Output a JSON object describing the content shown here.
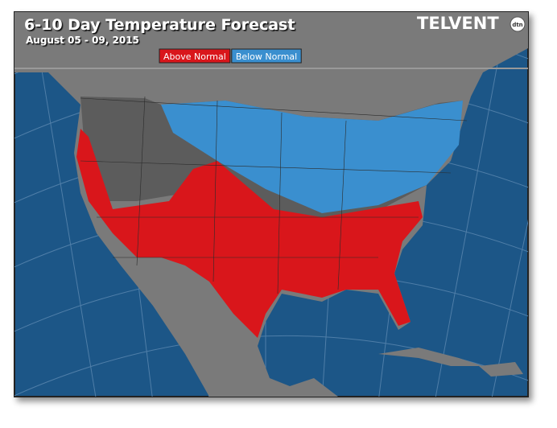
{
  "header": {
    "title": "6-10 Day Temperature Forecast",
    "subtitle": "August 05 - 09, 2015",
    "logo": "TELVENT",
    "logo_badge": "dtn"
  },
  "legend": {
    "items": [
      {
        "label": "Above Normal",
        "color": "#d9161b"
      },
      {
        "label": "Below Normal",
        "color": "#3a8fcf"
      }
    ]
  }
}
